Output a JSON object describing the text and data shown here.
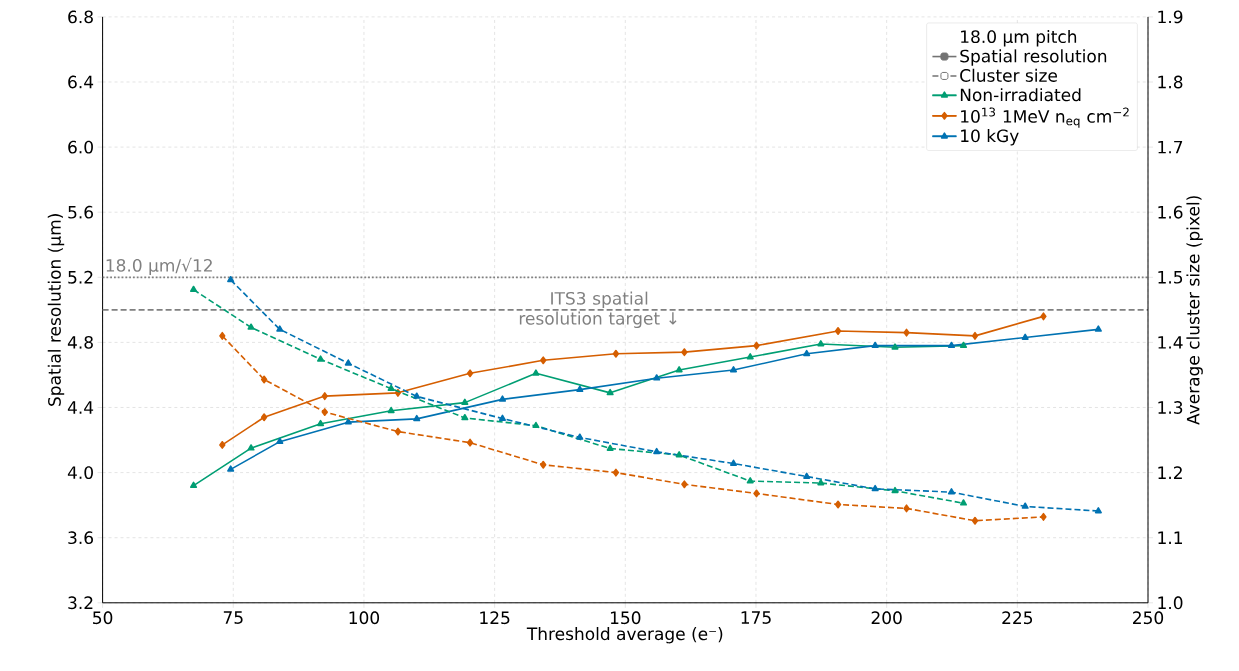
{
  "chart_data": {
    "type": "line",
    "xlabel": "Threshold average (e⁻)",
    "ylabel": "Spatial resolution (µm)",
    "y2label": "Average cluster size (pixel)",
    "legend_title": "18.0 µm pitch",
    "annotations": [
      "Spatial resolution",
      "Cluster size"
    ],
    "xlim": [
      50,
      250
    ],
    "xticks": [
      50,
      75,
      100,
      125,
      150,
      175,
      200,
      225,
      250
    ],
    "ylim": [
      3.2,
      6.8
    ],
    "yticks": [
      3.2,
      3.6,
      {
        "value": 4,
        "label": "4.0"
      },
      4.4,
      4.8,
      5.2,
      5.6,
      {
        "value": 6,
        "label": "6.0"
      },
      6.4,
      6.8
    ],
    "y2lim": [
      1.0,
      1.9
    ],
    "y2ticks": [
      {
        "value": 1,
        "label": "1.0"
      },
      1.1,
      1.2,
      1.3,
      1.4,
      1.5,
      1.6,
      1.7,
      1.8,
      1.9
    ],
    "grid": true,
    "legend": "top right",
    "ref_lines": [
      {
        "axis": "y",
        "value": 5.2,
        "label": "18.0 µm/√12",
        "color": "#808080",
        "line_style": "dotted"
      },
      {
        "axis": "y",
        "value": 5.0,
        "label": "ITS3 spatial resolution target ↓",
        "color": "#808080",
        "line_style": "dashed"
      }
    ],
    "series": [
      {
        "name": "Non-irradiated",
        "color": "#009e73",
        "marker": "triangle",
        "line_style": "solid",
        "x": [
          67.4,
          78.4,
          91.7,
          105.2,
          119.3,
          132.9,
          147.1,
          160.3,
          173.9,
          187.4,
          201.6,
          214.7
        ],
        "values": [
          3.92,
          4.15,
          4.3,
          4.38,
          4.43,
          4.61,
          4.49,
          4.63,
          4.71,
          4.79,
          4.77,
          4.78
        ]
      },
      {
        "name": "10$^{13}$ 1MeV n$_{eq}$ cm$^{−2}$",
        "color": "#d55e00",
        "marker": "diamond",
        "line_style": "solid",
        "x": [
          72.9,
          80.9,
          92.5,
          106.5,
          120.3,
          134.3,
          148.2,
          161.3,
          175.1,
          190.7,
          203.8,
          216.9,
          230.0
        ],
        "values": [
          4.17,
          4.34,
          4.47,
          4.49,
          4.61,
          4.69,
          4.73,
          4.74,
          4.78,
          4.87,
          4.86,
          4.84,
          4.96
        ]
      },
      {
        "name": "10 kGy",
        "color": "#0072b2",
        "marker": "triangle",
        "line_style": "solid",
        "x": [
          74.5,
          83.9,
          97.0,
          110.1,
          126.5,
          141.3,
          156.0,
          170.7,
          184.7,
          197.8,
          212.4,
          226.5,
          240.5
        ],
        "values": [
          4.02,
          4.19,
          4.31,
          4.33,
          4.45,
          4.51,
          4.58,
          4.63,
          4.73,
          4.78,
          4.78,
          4.83,
          4.88
        ]
      },
      {
        "color": "#009e73",
        "marker": "triangle",
        "line_style": "dashed",
        "axis": "y2",
        "x": [
          67.4,
          78.4,
          91.7,
          105.2,
          119.3,
          132.9,
          147.1,
          160.3,
          173.9,
          187.4,
          201.6,
          214.7
        ],
        "values": [
          1.481,
          1.423,
          1.374,
          1.329,
          1.284,
          1.272,
          1.237,
          1.227,
          1.187,
          1.184,
          1.172,
          1.153
        ]
      },
      {
        "color": "#d55e00",
        "marker": "diamond",
        "line_style": "dashed",
        "axis": "y2",
        "x": [
          72.9,
          80.9,
          92.5,
          106.5,
          120.3,
          134.3,
          148.2,
          161.3,
          175.1,
          190.7,
          203.8,
          216.9,
          230.0
        ],
        "values": [
          1.41,
          1.343,
          1.293,
          1.263,
          1.246,
          1.212,
          1.2,
          1.182,
          1.168,
          1.151,
          1.145,
          1.126,
          1.132
        ]
      },
      {
        "color": "#0072b2",
        "marker": "triangle",
        "line_style": "dashed",
        "axis": "y2",
        "x": [
          74.5,
          83.9,
          97.0,
          110.1,
          126.5,
          141.3,
          156.0,
          170.7,
          184.7,
          197.8,
          212.4,
          226.5,
          240.5
        ],
        "values": [
          1.496,
          1.42,
          1.368,
          1.317,
          1.283,
          1.254,
          1.232,
          1.214,
          1.194,
          1.175,
          1.17,
          1.148,
          1.141
        ]
      }
    ]
  }
}
